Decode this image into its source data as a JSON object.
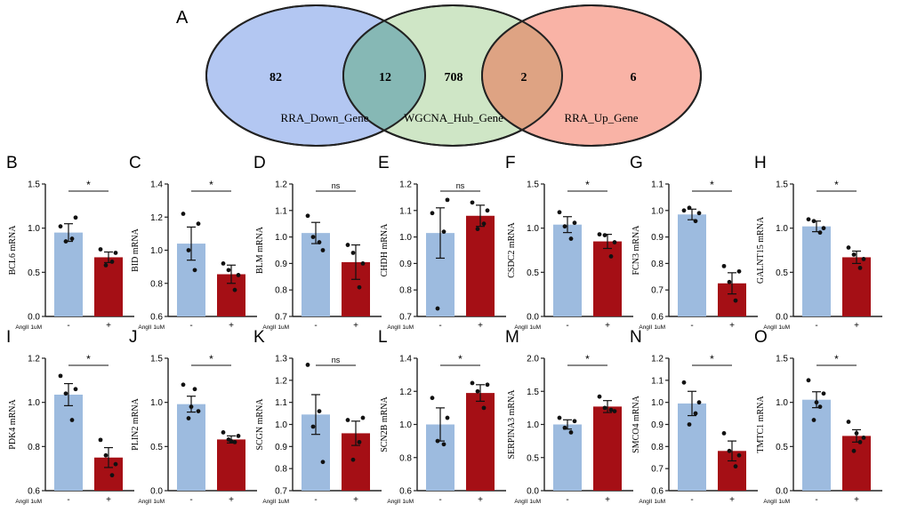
{
  "venn": {
    "panel_letter": "A",
    "sets": [
      {
        "name": "RRA_Down_Gene",
        "color": "#b3c7f2"
      },
      {
        "name": "WGCNA_Hub_Gene",
        "color": "#cfe6c6"
      },
      {
        "name": "RRA_Up_Gene",
        "color": "#f9b3a6"
      }
    ],
    "regions": [
      {
        "count": "82",
        "label": "only RRA_Down_Gene"
      },
      {
        "count": "12",
        "label": "RRA_Down_Gene ∩ WGCNA_Hub_Gene"
      },
      {
        "count": "708",
        "label": "only WGCNA_Hub_Gene"
      },
      {
        "count": "2",
        "label": "WGCNA_Hub_Gene ∩ RRA_Up_Gene"
      },
      {
        "count": "6",
        "label": "only RRA_Up_Gene"
      }
    ],
    "overlap_colors": [
      "#86b8b5",
      "#dea383"
    ]
  },
  "colors": {
    "control": "#9dbbdf",
    "treated": "#a50f15",
    "axis": "#222222"
  },
  "treatment_label": "AngII 1uM",
  "x_ticks": [
    "-",
    "+"
  ],
  "chart_data": [
    {
      "type": "bar",
      "panel": "B",
      "ylabel": "BCL6 mRNA",
      "ylim": [
        0,
        1.5
      ],
      "yticks": [
        "0.0",
        "0.5",
        "1.0",
        "1.5"
      ],
      "sig": "*",
      "values": [
        0.95,
        0.67
      ],
      "errors": [
        0.1,
        0.06
      ],
      "points": [
        [
          1.02,
          0.88,
          0.85,
          1.12
        ],
        [
          0.76,
          0.62,
          0.58,
          0.72
        ]
      ]
    },
    {
      "type": "bar",
      "panel": "C",
      "ylabel": "BID mRNA",
      "ylim": [
        0.6,
        1.4
      ],
      "yticks": [
        "0.6",
        "0.8",
        "1.0",
        "1.2",
        "1.4"
      ],
      "sig": "*",
      "values": [
        1.04,
        0.855
      ],
      "errors": [
        0.1,
        0.055
      ],
      "points": [
        [
          1.22,
          0.88,
          1.0,
          1.16
        ],
        [
          0.92,
          0.76,
          0.88,
          0.85
        ]
      ]
    },
    {
      "type": "bar",
      "panel": "D",
      "ylabel": "BLM mRNA",
      "ylim": [
        0.7,
        1.2
      ],
      "yticks": [
        "0.7",
        "0.8",
        "0.9",
        "1.0",
        "1.1",
        "1.2"
      ],
      "sig": "ns",
      "values": [
        1.015,
        0.905
      ],
      "errors": [
        0.04,
        0.065
      ],
      "points": [
        [
          1.08,
          0.98,
          1.0,
          0.95
        ],
        [
          0.97,
          0.81,
          0.94,
          0.9
        ]
      ]
    },
    {
      "type": "bar",
      "panel": "E",
      "ylabel": "CHDH mRNA",
      "ylim": [
        0.7,
        1.2
      ],
      "yticks": [
        "0.7",
        "0.8",
        "0.9",
        "1.0",
        "1.1",
        "1.2"
      ],
      "sig": "ns",
      "values": [
        1.015,
        1.08
      ],
      "errors": [
        0.095,
        0.04
      ],
      "points": [
        [
          1.09,
          1.02,
          0.73,
          1.14
        ],
        [
          1.13,
          1.05,
          1.03,
          1.1
        ]
      ]
    },
    {
      "type": "bar",
      "panel": "F",
      "ylabel": "CSDC2 mRNA",
      "ylim": [
        0,
        1.5
      ],
      "yticks": [
        "0.0",
        "0.5",
        "1.0",
        "1.5"
      ],
      "sig": "*",
      "values": [
        1.04,
        0.85
      ],
      "errors": [
        0.09,
        0.08
      ],
      "points": [
        [
          1.18,
          0.88,
          1.02,
          1.06
        ],
        [
          0.93,
          0.68,
          0.92,
          0.84
        ]
      ]
    },
    {
      "type": "bar",
      "panel": "G",
      "ylabel": "FCN3 mRNA",
      "ylim": [
        0.6,
        1.1
      ],
      "yticks": [
        "0.6",
        "0.7",
        "0.8",
        "0.9",
        "1.0",
        "1.1"
      ],
      "sig": "*",
      "values": [
        0.985,
        0.725
      ],
      "errors": [
        0.02,
        0.04
      ],
      "points": [
        [
          1.0,
          0.96,
          1.01,
          0.99
        ],
        [
          0.79,
          0.66,
          0.73,
          0.77
        ]
      ]
    },
    {
      "type": "bar",
      "panel": "H",
      "ylabel": "GALNT15 mRNA",
      "ylim": [
        0,
        1.5
      ],
      "yticks": [
        "0.0",
        "0.5",
        "1.0",
        "1.5"
      ],
      "sig": "*",
      "values": [
        1.02,
        0.67
      ],
      "errors": [
        0.06,
        0.07
      ],
      "points": [
        [
          1.1,
          0.95,
          1.08,
          1.0
        ],
        [
          0.78,
          0.55,
          0.7,
          0.65
        ]
      ]
    },
    {
      "type": "bar",
      "panel": "I",
      "ylabel": "PDK4 mRNA",
      "ylim": [
        0.6,
        1.2
      ],
      "yticks": [
        "0.6",
        "0.8",
        "1.0",
        "1.2"
      ],
      "sig": "*",
      "values": [
        1.035,
        0.75
      ],
      "errors": [
        0.05,
        0.045
      ],
      "points": [
        [
          1.12,
          0.92,
          1.04,
          1.06
        ],
        [
          0.83,
          0.67,
          0.76,
          0.72
        ]
      ]
    },
    {
      "type": "bar",
      "panel": "J",
      "ylabel": "PLIN2 mRNA",
      "ylim": [
        0,
        1.5
      ],
      "yticks": [
        "0.0",
        "0.5",
        "1.0",
        "1.5"
      ],
      "sig": "*",
      "values": [
        0.98,
        0.58
      ],
      "errors": [
        0.09,
        0.04
      ],
      "points": [
        [
          1.2,
          1.15,
          0.82,
          0.9,
          0.95
        ],
        [
          0.66,
          0.55,
          0.58,
          0.62,
          0.56
        ]
      ]
    },
    {
      "type": "bar",
      "panel": "K",
      "ylabel": "SCGN mRNA",
      "ylim": [
        0.7,
        1.3
      ],
      "yticks": [
        "0.7",
        "0.8",
        "0.9",
        "1.0",
        "1.1",
        "1.2",
        "1.3"
      ],
      "sig": "ns",
      "values": [
        1.045,
        0.96
      ],
      "errors": [
        0.09,
        0.055
      ],
      "points": [
        [
          1.27,
          1.06,
          0.99,
          0.83
        ],
        [
          1.02,
          0.92,
          0.84,
          1.03
        ]
      ]
    },
    {
      "type": "bar",
      "panel": "L",
      "ylabel": "SCN2B mRNA",
      "ylim": [
        0.6,
        1.4
      ],
      "yticks": [
        "0.6",
        "0.8",
        "1.0",
        "1.2",
        "1.4"
      ],
      "sig": "*",
      "values": [
        1.0,
        1.19
      ],
      "errors": [
        0.1,
        0.05
      ],
      "points": [
        [
          1.16,
          0.88,
          0.9,
          1.04
        ],
        [
          1.25,
          1.1,
          1.2,
          1.24
        ]
      ]
    },
    {
      "type": "bar",
      "panel": "M",
      "ylabel": "SERPINA3 mRNA",
      "ylim": [
        0,
        2.0
      ],
      "yticks": [
        "0.0",
        "0.5",
        "1.0",
        "1.5",
        "2.0"
      ],
      "sig": "*",
      "values": [
        1.0,
        1.27
      ],
      "errors": [
        0.07,
        0.09
      ],
      "points": [
        [
          1.1,
          0.88,
          0.95,
          1.05
        ],
        [
          1.42,
          1.22,
          1.25,
          1.2
        ]
      ]
    },
    {
      "type": "bar",
      "panel": "N",
      "ylabel": "SMCO4 mRNA",
      "ylim": [
        0.6,
        1.2
      ],
      "yticks": [
        "0.6",
        "0.7",
        "0.8",
        "0.9",
        "1.0",
        "1.1",
        "1.2"
      ],
      "sig": "*",
      "values": [
        0.995,
        0.78
      ],
      "errors": [
        0.055,
        0.045
      ],
      "points": [
        [
          1.09,
          0.95,
          0.9,
          1.0
        ],
        [
          0.86,
          0.71,
          0.78,
          0.76
        ]
      ]
    },
    {
      "type": "bar",
      "panel": "O",
      "ylabel": "TMTC1 mRNA",
      "ylim": [
        0,
        1.5
      ],
      "yticks": [
        "0.0",
        "0.5",
        "1.0",
        "1.5"
      ],
      "sig": "*",
      "values": [
        1.03,
        0.62
      ],
      "errors": [
        0.09,
        0.07
      ],
      "points": [
        [
          1.25,
          0.95,
          0.8,
          1.1,
          1.0
        ],
        [
          0.78,
          0.55,
          0.45,
          0.6,
          0.65
        ]
      ]
    }
  ]
}
